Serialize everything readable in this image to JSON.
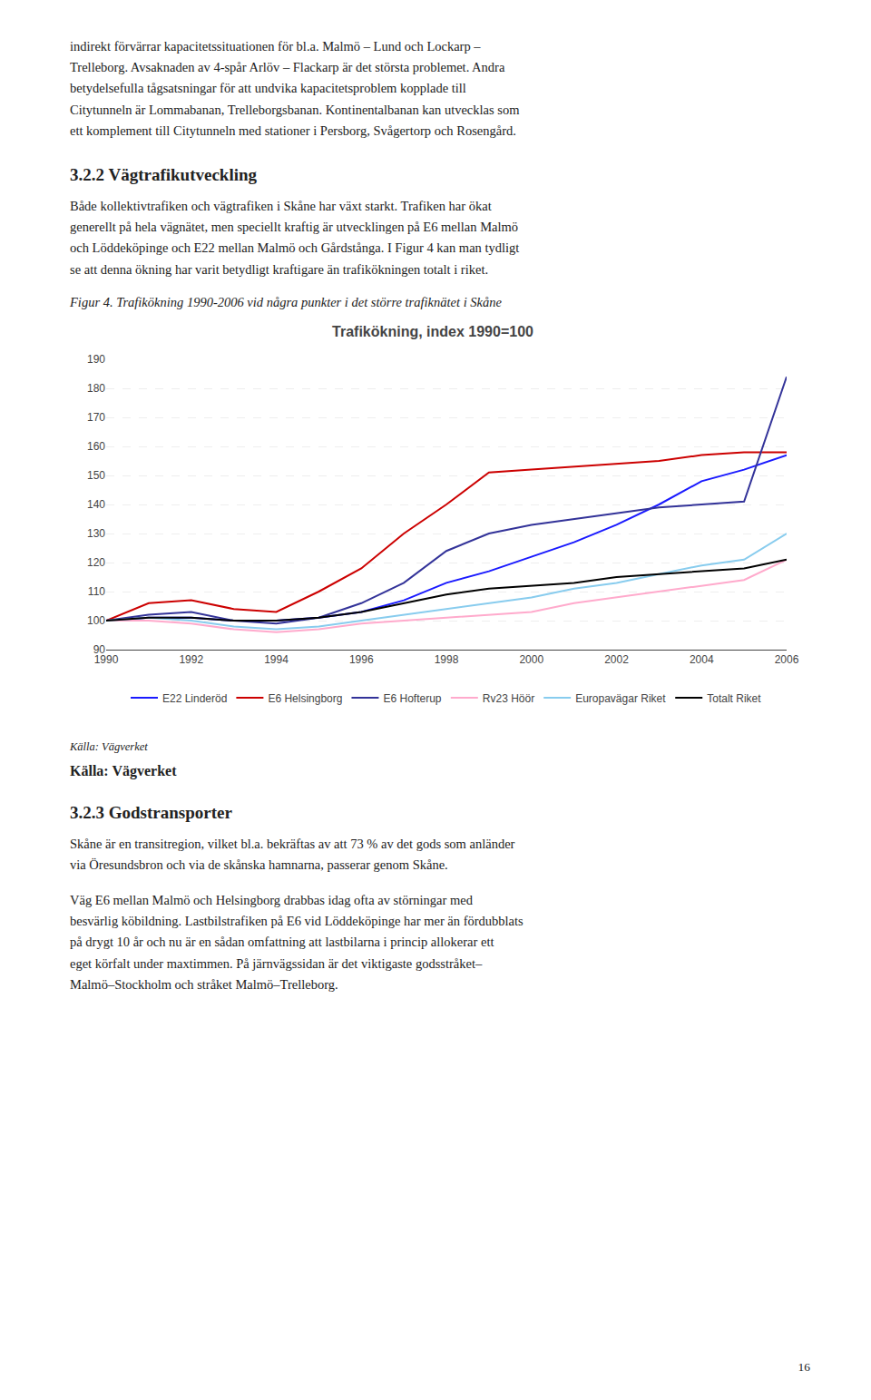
{
  "chart_data": {
    "type": "line",
    "title": "Trafikökning, index 1990=100",
    "x": [
      1990,
      1991,
      1992,
      1993,
      1994,
      1995,
      1996,
      1997,
      1998,
      1999,
      2000,
      2001,
      2002,
      2003,
      2004,
      2005,
      2006
    ],
    "series": [
      {
        "name": "E22 Linderöd",
        "color": "#1a1aff",
        "values": [
          100,
          101,
          101,
          100,
          100,
          101,
          103,
          107,
          113,
          117,
          122,
          127,
          133,
          140,
          148,
          152,
          157
        ]
      },
      {
        "name": "E6 Helsingborg",
        "color": "#cc0000",
        "values": [
          100,
          106,
          107,
          104,
          103,
          110,
          118,
          130,
          140,
          151,
          152,
          153,
          154,
          155,
          157,
          158,
          158
        ]
      },
      {
        "name": "E6 Hofterup",
        "color": "#333399",
        "values": [
          100,
          102,
          103,
          100,
          99,
          101,
          106,
          113,
          124,
          130,
          133,
          135,
          137,
          139,
          140,
          141,
          184
        ]
      },
      {
        "name": "Rv23 Höör",
        "color": "#ffaacc",
        "values": [
          100,
          100,
          99,
          97,
          96,
          97,
          99,
          100,
          101,
          102,
          103,
          106,
          108,
          110,
          112,
          114,
          121
        ]
      },
      {
        "name": "Europavägar Riket",
        "color": "#88ccee",
        "values": [
          100,
          101,
          100,
          98,
          97,
          98,
          100,
          102,
          104,
          106,
          108,
          111,
          113,
          116,
          119,
          121,
          130
        ]
      },
      {
        "name": "Totalt Riket",
        "color": "#000000",
        "values": [
          100,
          101,
          101,
          100,
          100,
          101,
          103,
          106,
          109,
          111,
          112,
          113,
          115,
          116,
          117,
          118,
          121
        ]
      }
    ],
    "xlim": [
      1990,
      2006
    ],
    "xticks": [
      1990,
      1992,
      1994,
      1996,
      1998,
      2000,
      2002,
      2004,
      2006
    ],
    "ylim": [
      90,
      190
    ],
    "yticks": [
      90,
      100,
      110,
      120,
      130,
      140,
      150,
      160,
      170,
      180,
      190
    ],
    "grid": true,
    "legend": "bottom",
    "annotations": [
      "indirekt förvärrar kapacitetssituationen för bl.a. Malmö – Lund och Lockarp –\nTrelleborg. Avsaknaden av 4-spår Arlöv – Flackarp är det största problemet. Andra\nbetydelsefulla tågsatsningar för att undvika kapacitetsproblem kopplade till\nCitytunneln är Lommabanan, Trelleborgsbanan. Kontinentalbanan kan utvecklas som\nett komplement till Citytunneln med stationer i Persborg, Svågertorp och Rosengård.",
      "3.2.2 Vägtrafikutveckling",
      "Både kollektivtrafiken och vägtrafiken i Skåne har växt starkt. Trafiken har ökat\ngenerellt på hela vägnätet, men speciellt kraftig är utvecklingen på E6 mellan Malmö\noch Löddeköpinge och E22 mellan Malmö och Gårdstånga. I Figur 4 kan man tydligt\nse att denna ökning har varit betydligt kraftigare än trafikökningen totalt i riket.",
      "Figur 4. Trafikökning 1990-2006 vid några punkter i det större trafiknätet i Skåne",
      "Källa: Vägverket",
      "Källa: Vägverket",
      "3.2.3 Godstransporter",
      "Skåne är en transitregion, vilket bl.a. bekräftas av att 73 % av det gods som anländer\nvia Öresundsbron och via de skånska hamnarna, passerar genom Skåne.",
      "Väg E6 mellan Malmö och Helsingborg drabbas idag ofta av störningar med\nbesvärlig köbildning. Lastbilstrafiken på E6 vid Löddeköpinge har mer än fördubblats\npå drygt 10 år och nu är en sådan omfattning att lastbilarna i princip allokerar ett\neget körfalt under maxtimmen. På järnvägssidan är det viktigaste godsstråket–\nMalmö–Stockholm och stråket Malmö–Trelleborg.",
      "16"
    ]
  }
}
